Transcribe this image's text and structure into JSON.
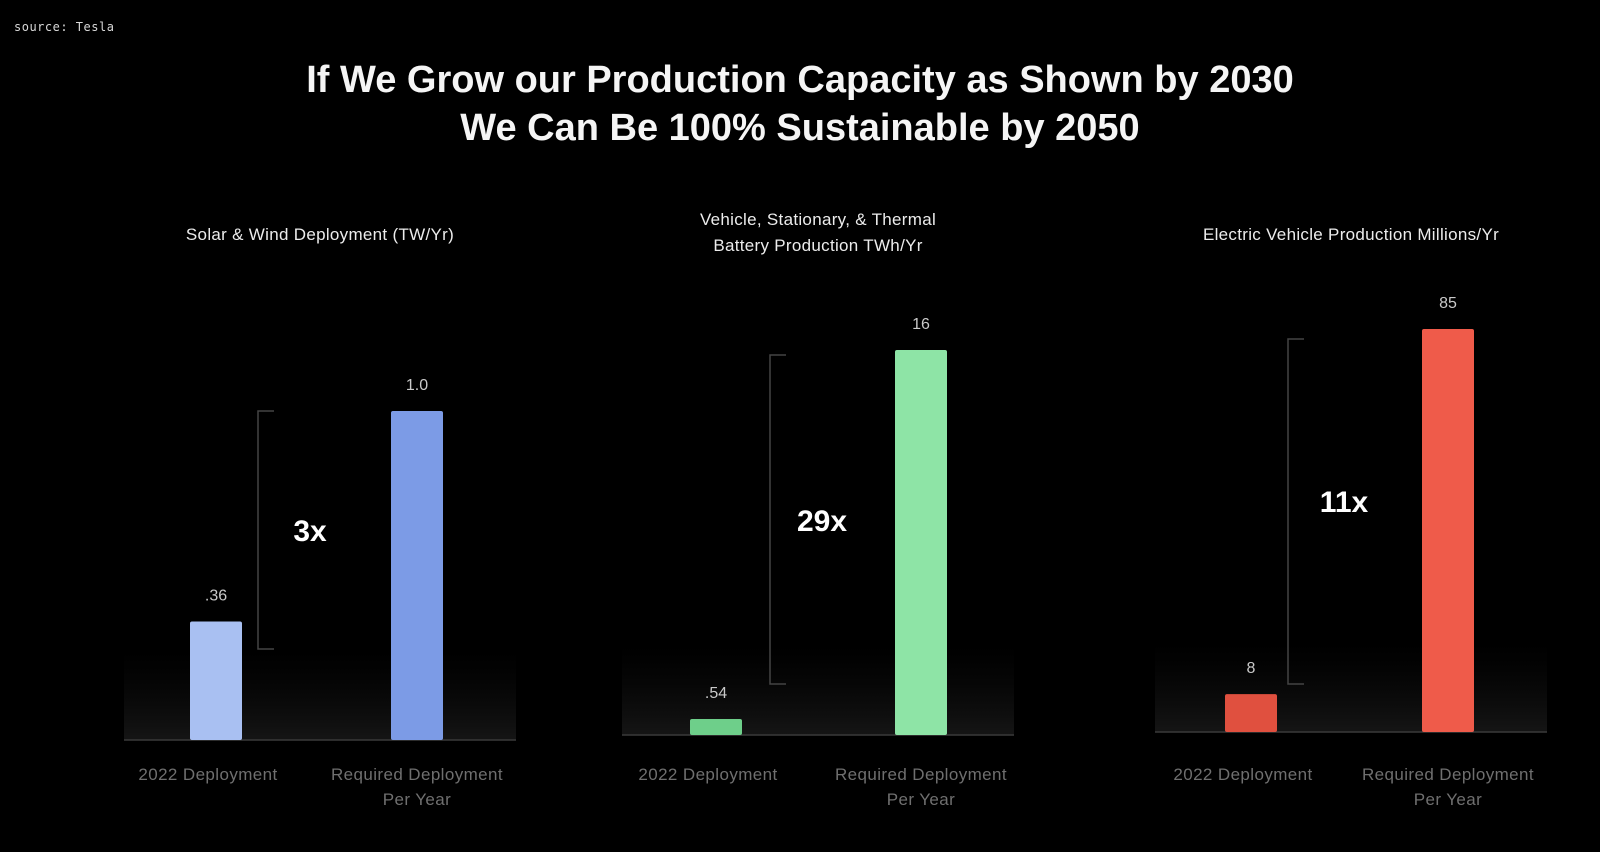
{
  "source": "source: Tesla",
  "headline": {
    "line1": "If We Grow our Production Capacity as Shown by 2030",
    "line2": "We Can Be 100% Sustainable by 2050"
  },
  "chart_data": [
    {
      "type": "bar",
      "title_lines": [
        "Solar & Wind Deployment (TW/Yr)"
      ],
      "categories": [
        [
          "2022 Deployment"
        ],
        [
          "Required Deployment",
          "Per Year"
        ]
      ],
      "values": [
        0.36,
        1.0
      ],
      "value_labels": [
        ".36",
        "1.0"
      ],
      "multiplier": "3x",
      "ylim": [
        0,
        1.0
      ],
      "colors": [
        "#a9c0f2",
        "#7c9be6"
      ]
    },
    {
      "type": "bar",
      "title_lines": [
        "Vehicle, Stationary, & Thermal",
        "Battery Production TWh/Yr"
      ],
      "categories": [
        [
          "2022 Deployment"
        ],
        [
          "Required Deployment",
          "Per Year"
        ]
      ],
      "values": [
        0.54,
        16
      ],
      "value_labels": [
        ".54",
        "16"
      ],
      "multiplier": "29x",
      "ylim": [
        0,
        16
      ],
      "colors": [
        "#6ecf8a",
        "#8ee4a6"
      ]
    },
    {
      "type": "bar",
      "title_lines": [
        "Electric Vehicle Production Millions/Yr"
      ],
      "categories": [
        [
          "2022 Deployment"
        ],
        [
          "Required Deployment",
          "Per Year"
        ]
      ],
      "values": [
        8,
        85
      ],
      "value_labels": [
        "8",
        "85"
      ],
      "multiplier": "11x",
      "ylim": [
        0,
        85
      ],
      "colors": [
        "#e0503f",
        "#ef5b4a"
      ]
    }
  ]
}
